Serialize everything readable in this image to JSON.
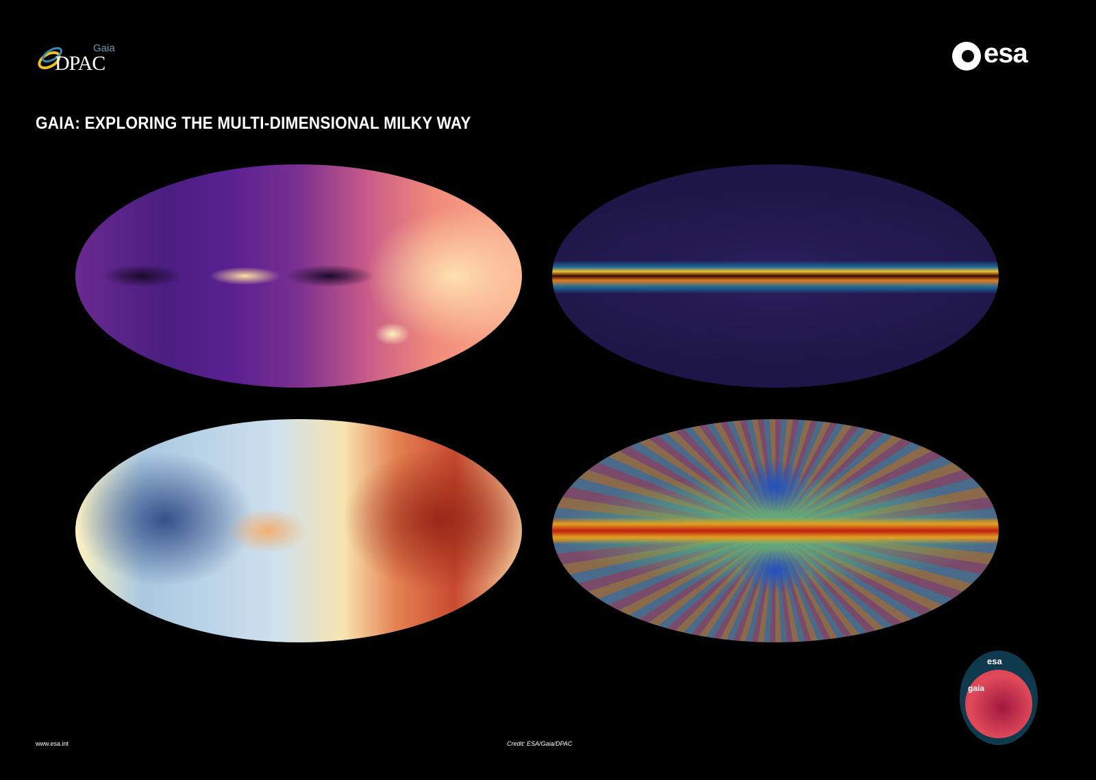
{
  "header": {
    "dpac_logo": {
      "top_text": "Gaia",
      "main_text": "DPAC"
    },
    "esa_logo": {
      "text": "esa"
    },
    "title": "GAIA: EXPLORING THE MULTI-DIMENSIONAL MILKY WAY"
  },
  "maps": [
    {
      "colormap": "magma",
      "colors": [
        "#4a1e80",
        "#c85a8a",
        "#fbb090"
      ]
    },
    {
      "colormap": "dust",
      "colors": [
        "#1e1648",
        "#1a6a9a",
        "#f0c030",
        "#3a0808"
      ]
    },
    {
      "colormap": "blue-red",
      "colors": [
        "#34508a",
        "#fff3c0",
        "#c84a30"
      ]
    },
    {
      "colormap": "jet-noise",
      "colors": [
        "#2050c0",
        "#60c080",
        "#c02010"
      ]
    }
  ],
  "patch": {
    "agency": "esa",
    "mission": "gaia"
  },
  "footer": {
    "url": "www.esa.int",
    "credit": "Credit: ESA/Gaia/DPAC"
  }
}
